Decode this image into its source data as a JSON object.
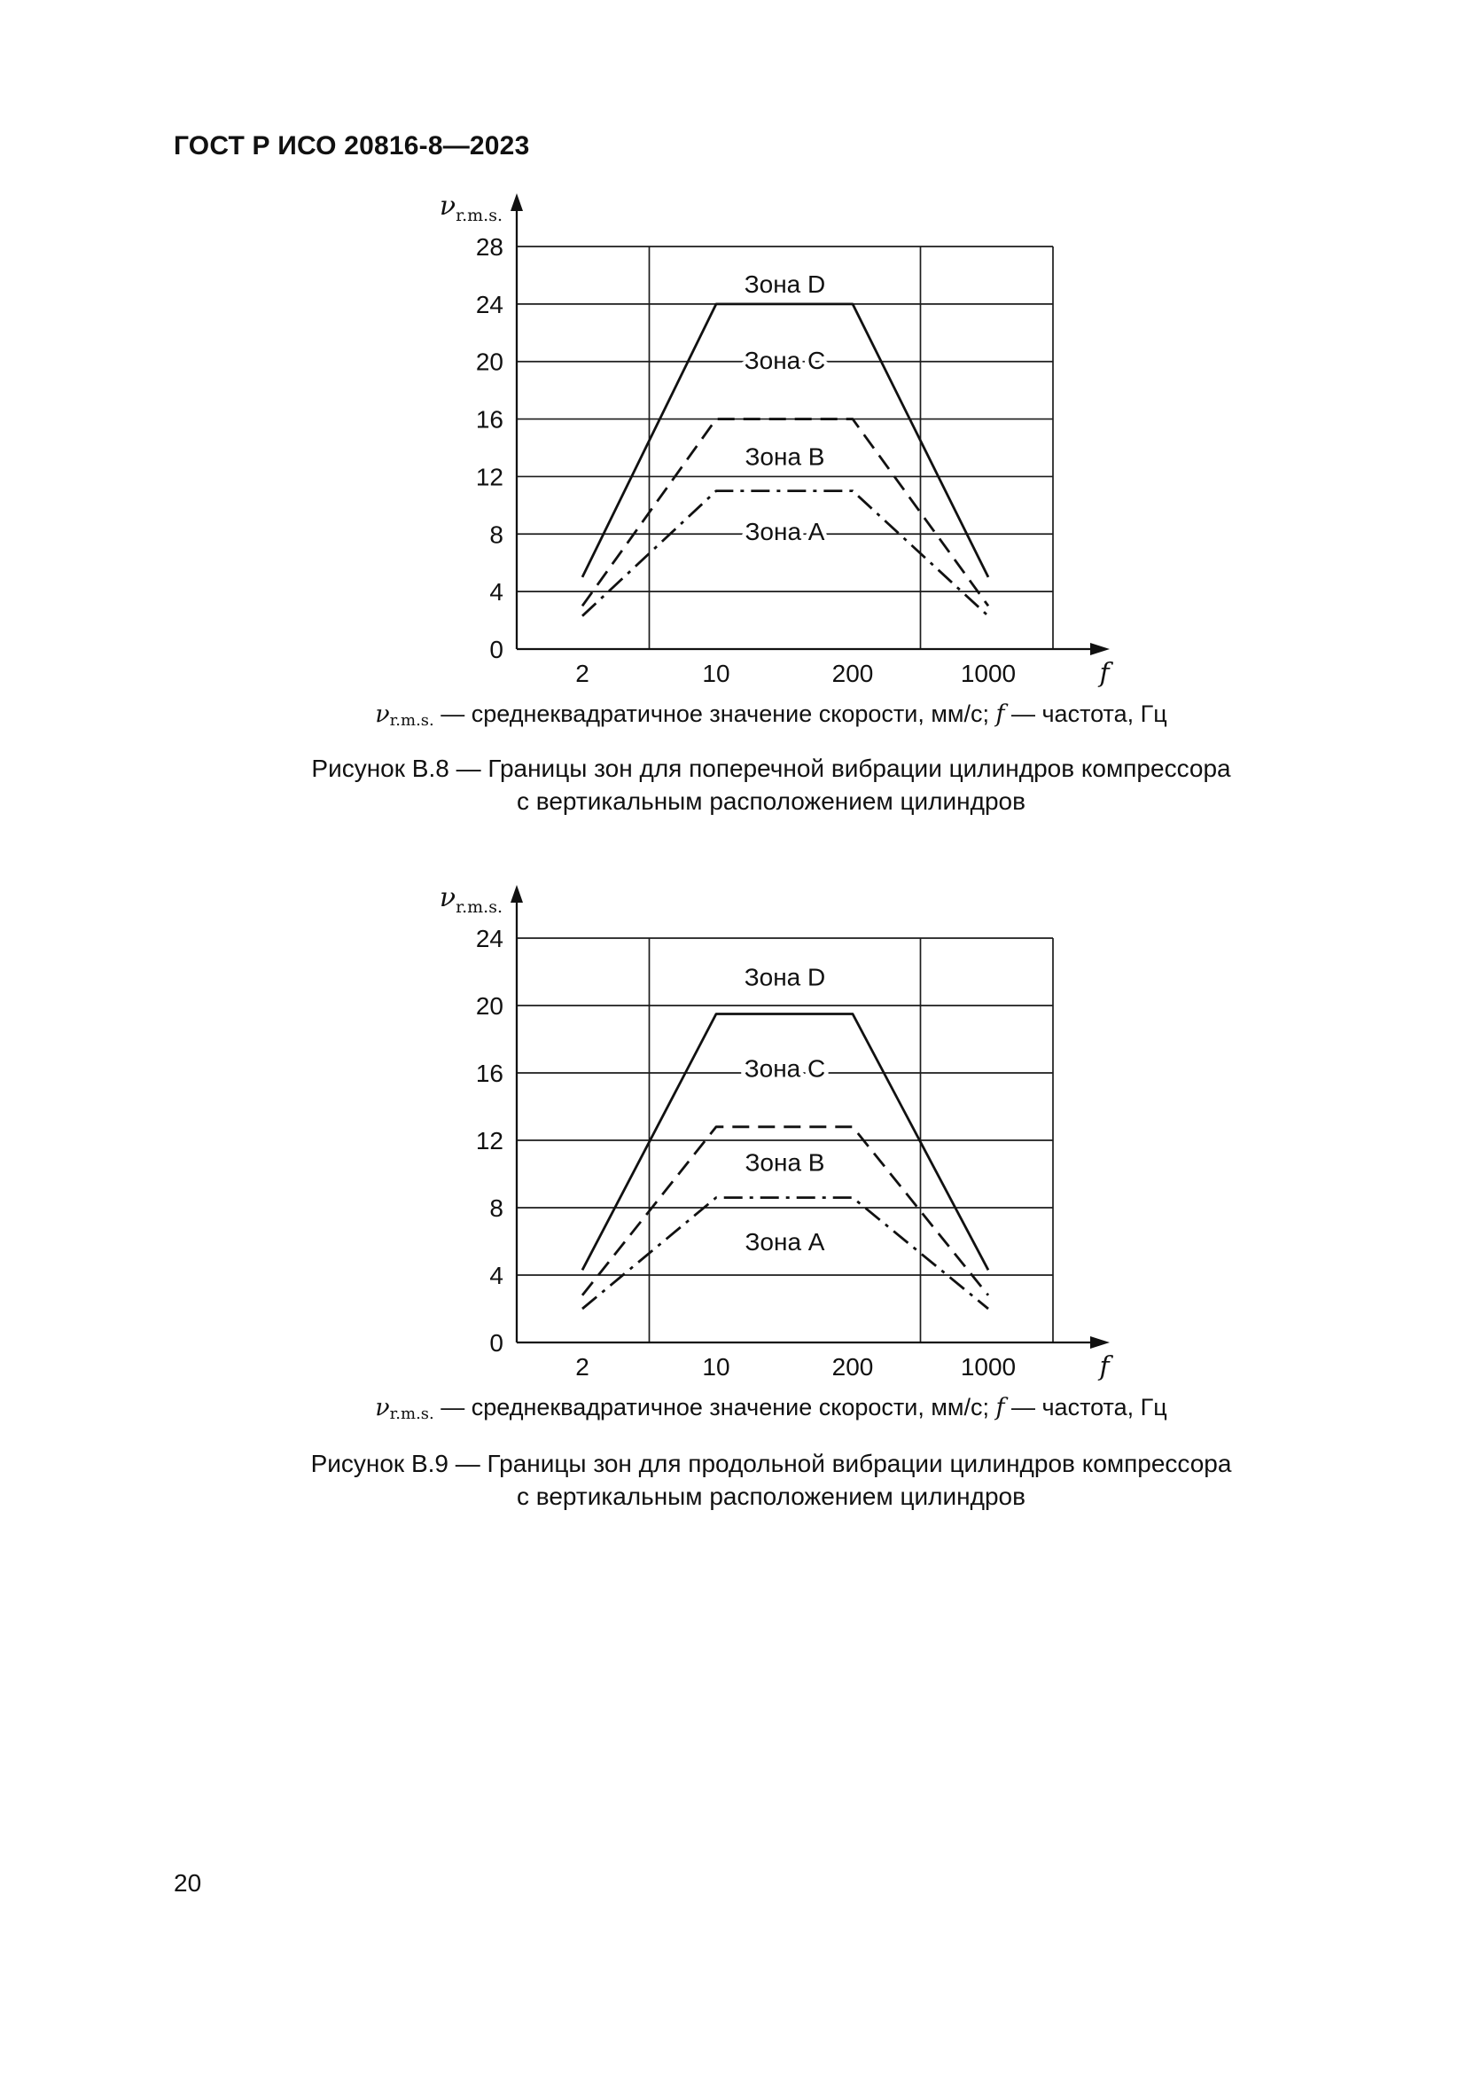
{
  "page": {
    "header": "ГОСТ Р ИСО 20816-8—2023",
    "page_number": "20"
  },
  "figures": [
    {
      "legend": {
        "sym": "ν",
        "sym_sub": "r.m.s.",
        "text1": " — среднеквадратичное значение скорости, мм/с; ",
        "fsym": "f",
        "text2": " — частота, Гц"
      },
      "caption_line1": "Рисунок В.8 — Границы зон для поперечной вибрации цилиндров компрессора",
      "caption_line2": "с вертикальным расположением цилиндров"
    },
    {
      "legend": {
        "sym": "ν",
        "sym_sub": "r.m.s.",
        "text1": " — среднеквадратичное значение скорости, мм/с; ",
        "fsym": "f",
        "text2": " — частота, Гц"
      },
      "caption_line1": "Рисунок В.9 — Границы зон для продольной вибрации цилиндров компрессора",
      "caption_line2": "с вертикальным расположением цилиндров"
    }
  ],
  "chart_data": [
    {
      "type": "line",
      "title": "Рисунок В.8 — Границы зон для поперечной вибрации цилиндров компрессора с вертикальным расположением цилиндров",
      "xlabel": "f — частота, Гц",
      "ylabel": "ν r.m.s. — среднеквадратичное значение скорости, мм/с",
      "y_symbol": "ν",
      "y_symbol_sub": "r.m.s.",
      "x_symbol": "f",
      "x_scale": "log-schematic",
      "grid": true,
      "x_values": [
        2,
        10,
        200,
        1000
      ],
      "x_ticks": [
        "2",
        "10",
        "200",
        "1000"
      ],
      "y_ticks": [
        0,
        4,
        8,
        12,
        16,
        20,
        24,
        28
      ],
      "ylim": [
        0,
        28
      ],
      "zones": [
        {
          "label": "Зона A",
          "at_value": 8.2
        },
        {
          "label": "Зона B",
          "at_value": 13.4
        },
        {
          "label": "Зона C",
          "at_value": 20.1
        },
        {
          "label": "Зона D",
          "at_value": 25.4
        }
      ],
      "series": [
        {
          "name": "solid",
          "style": "solid",
          "x": [
            2,
            10,
            200,
            1000
          ],
          "values": [
            5,
            24,
            24,
            5
          ]
        },
        {
          "name": "dashed",
          "style": "dashed",
          "x": [
            2,
            10,
            200,
            1000
          ],
          "values": [
            3,
            16,
            16,
            3
          ]
        },
        {
          "name": "dash-dot",
          "style": "dashdot",
          "x": [
            2,
            10,
            200,
            1000
          ],
          "values": [
            2.3,
            11,
            11,
            2.3
          ]
        }
      ]
    },
    {
      "type": "line",
      "title": "Рисунок В.9 — Границы зон для продольной вибрации цилиндров компрессора с вертикальным расположением цилиндров",
      "xlabel": "f — частота, Гц",
      "ylabel": "ν r.m.s. — среднеквадратичное значение скорости, мм/с",
      "y_symbol": "ν",
      "y_symbol_sub": "r.m.s.",
      "x_symbol": "f",
      "x_scale": "log-schematic",
      "grid": true,
      "x_values": [
        2,
        10,
        200,
        1000
      ],
      "x_ticks": [
        "2",
        "10",
        "200",
        "1000"
      ],
      "y_ticks": [
        0,
        4,
        8,
        12,
        16,
        20,
        24
      ],
      "ylim": [
        0,
        24
      ],
      "zones": [
        {
          "label": "Зона A",
          "at_value": 6.0
        },
        {
          "label": "Зона B",
          "at_value": 10.7
        },
        {
          "label": "Зона C",
          "at_value": 16.3
        },
        {
          "label": "Зона D",
          "at_value": 21.7
        }
      ],
      "series": [
        {
          "name": "solid",
          "style": "solid",
          "x": [
            2,
            10,
            200,
            1000
          ],
          "values": [
            4.3,
            19.5,
            19.5,
            4.3
          ]
        },
        {
          "name": "dashed",
          "style": "dashed",
          "x": [
            2,
            10,
            200,
            1000
          ],
          "values": [
            2.8,
            12.8,
            12.8,
            2.8
          ]
        },
        {
          "name": "dash-dot",
          "style": "dashdot",
          "x": [
            2,
            10,
            200,
            1000
          ],
          "values": [
            2.0,
            8.6,
            8.6,
            2.0
          ]
        }
      ]
    }
  ]
}
